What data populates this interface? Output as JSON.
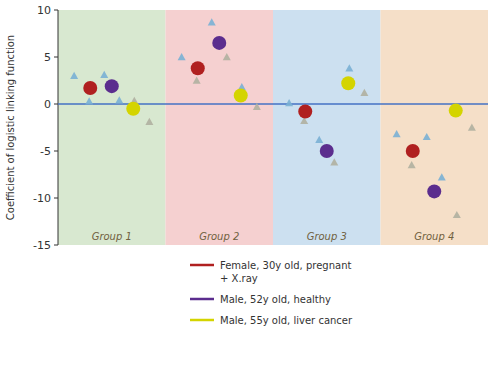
{
  "chart_data": {
    "type": "scatter",
    "categories": [
      "Group 1",
      "Group 2",
      "Group 3",
      "Group 4"
    ],
    "colors": [
      "#d8e8d0",
      "#f5d0d0",
      "#cce0f0",
      "#f5dfc8"
    ],
    "ylabel": "Coefficient of logistic linking function",
    "ylim": [
      -15,
      10
    ],
    "yticks": [
      -15,
      -10,
      -5,
      0,
      5,
      10
    ],
    "grid": false,
    "legend": "bottom",
    "reference_line": {
      "value": 0,
      "color": "#4472c4"
    },
    "series": [
      {
        "name": "Female, 30y old, pregnant\n+ X.ray",
        "color": "#b02020",
        "marker": "circle",
        "values": [
          1.7,
          3.8,
          -0.8,
          -5.0
        ]
      },
      {
        "name": "Male, 52y old, healthy",
        "color": "#5b2d8e",
        "marker": "circle",
        "values": [
          1.9,
          6.5,
          -5.0,
          -9.3
        ]
      },
      {
        "name": "Male, 55y old, liver cancer",
        "color": "#d4d400",
        "marker": "circle",
        "values": [
          -0.5,
          0.9,
          2.2,
          -0.7
        ]
      },
      {
        "marker": "triangle",
        "colors": [
          "#7ab0d4",
          "#7ab0d4",
          "#7ab0d4",
          "#7ab0d4"
        ],
        "values": [
          3.0,
          5.0,
          0.1,
          -3.2
        ]
      },
      {
        "marker": "triangle",
        "colors": [
          "#7ab0d4",
          "#b0b0a0",
          "#b0b0a0",
          "#b0b0a0"
        ],
        "values": [
          0.3,
          2.5,
          -1.8,
          -6.5
        ]
      },
      {
        "marker": "triangle",
        "colors": [
          "#7ab0d4",
          "#7ab0d4",
          "#7ab0d4",
          "#7ab0d4"
        ],
        "values": [
          3.1,
          8.7,
          -3.8,
          -3.5
        ]
      },
      {
        "marker": "triangle",
        "colors": [
          "#7ab0d4",
          "#b0b0a0",
          "#b0b0a0",
          "#7ab0d4"
        ],
        "values": [
          0.4,
          5.0,
          -6.2,
          -7.8
        ]
      },
      {
        "marker": "triangle",
        "colors": [
          "#b0b0a0",
          "#7ab0d4",
          "#7ab0d4",
          "#b0b0a0"
        ],
        "values": [
          0.35,
          1.8,
          3.8,
          -11.8
        ]
      },
      {
        "marker": "triangle",
        "colors": [
          "#b0b0a0",
          "#b0b0a0",
          "#b0b0a0",
          "#b0b0a0"
        ],
        "values": [
          -1.9,
          -0.3,
          1.2,
          -2.5
        ]
      }
    ]
  }
}
